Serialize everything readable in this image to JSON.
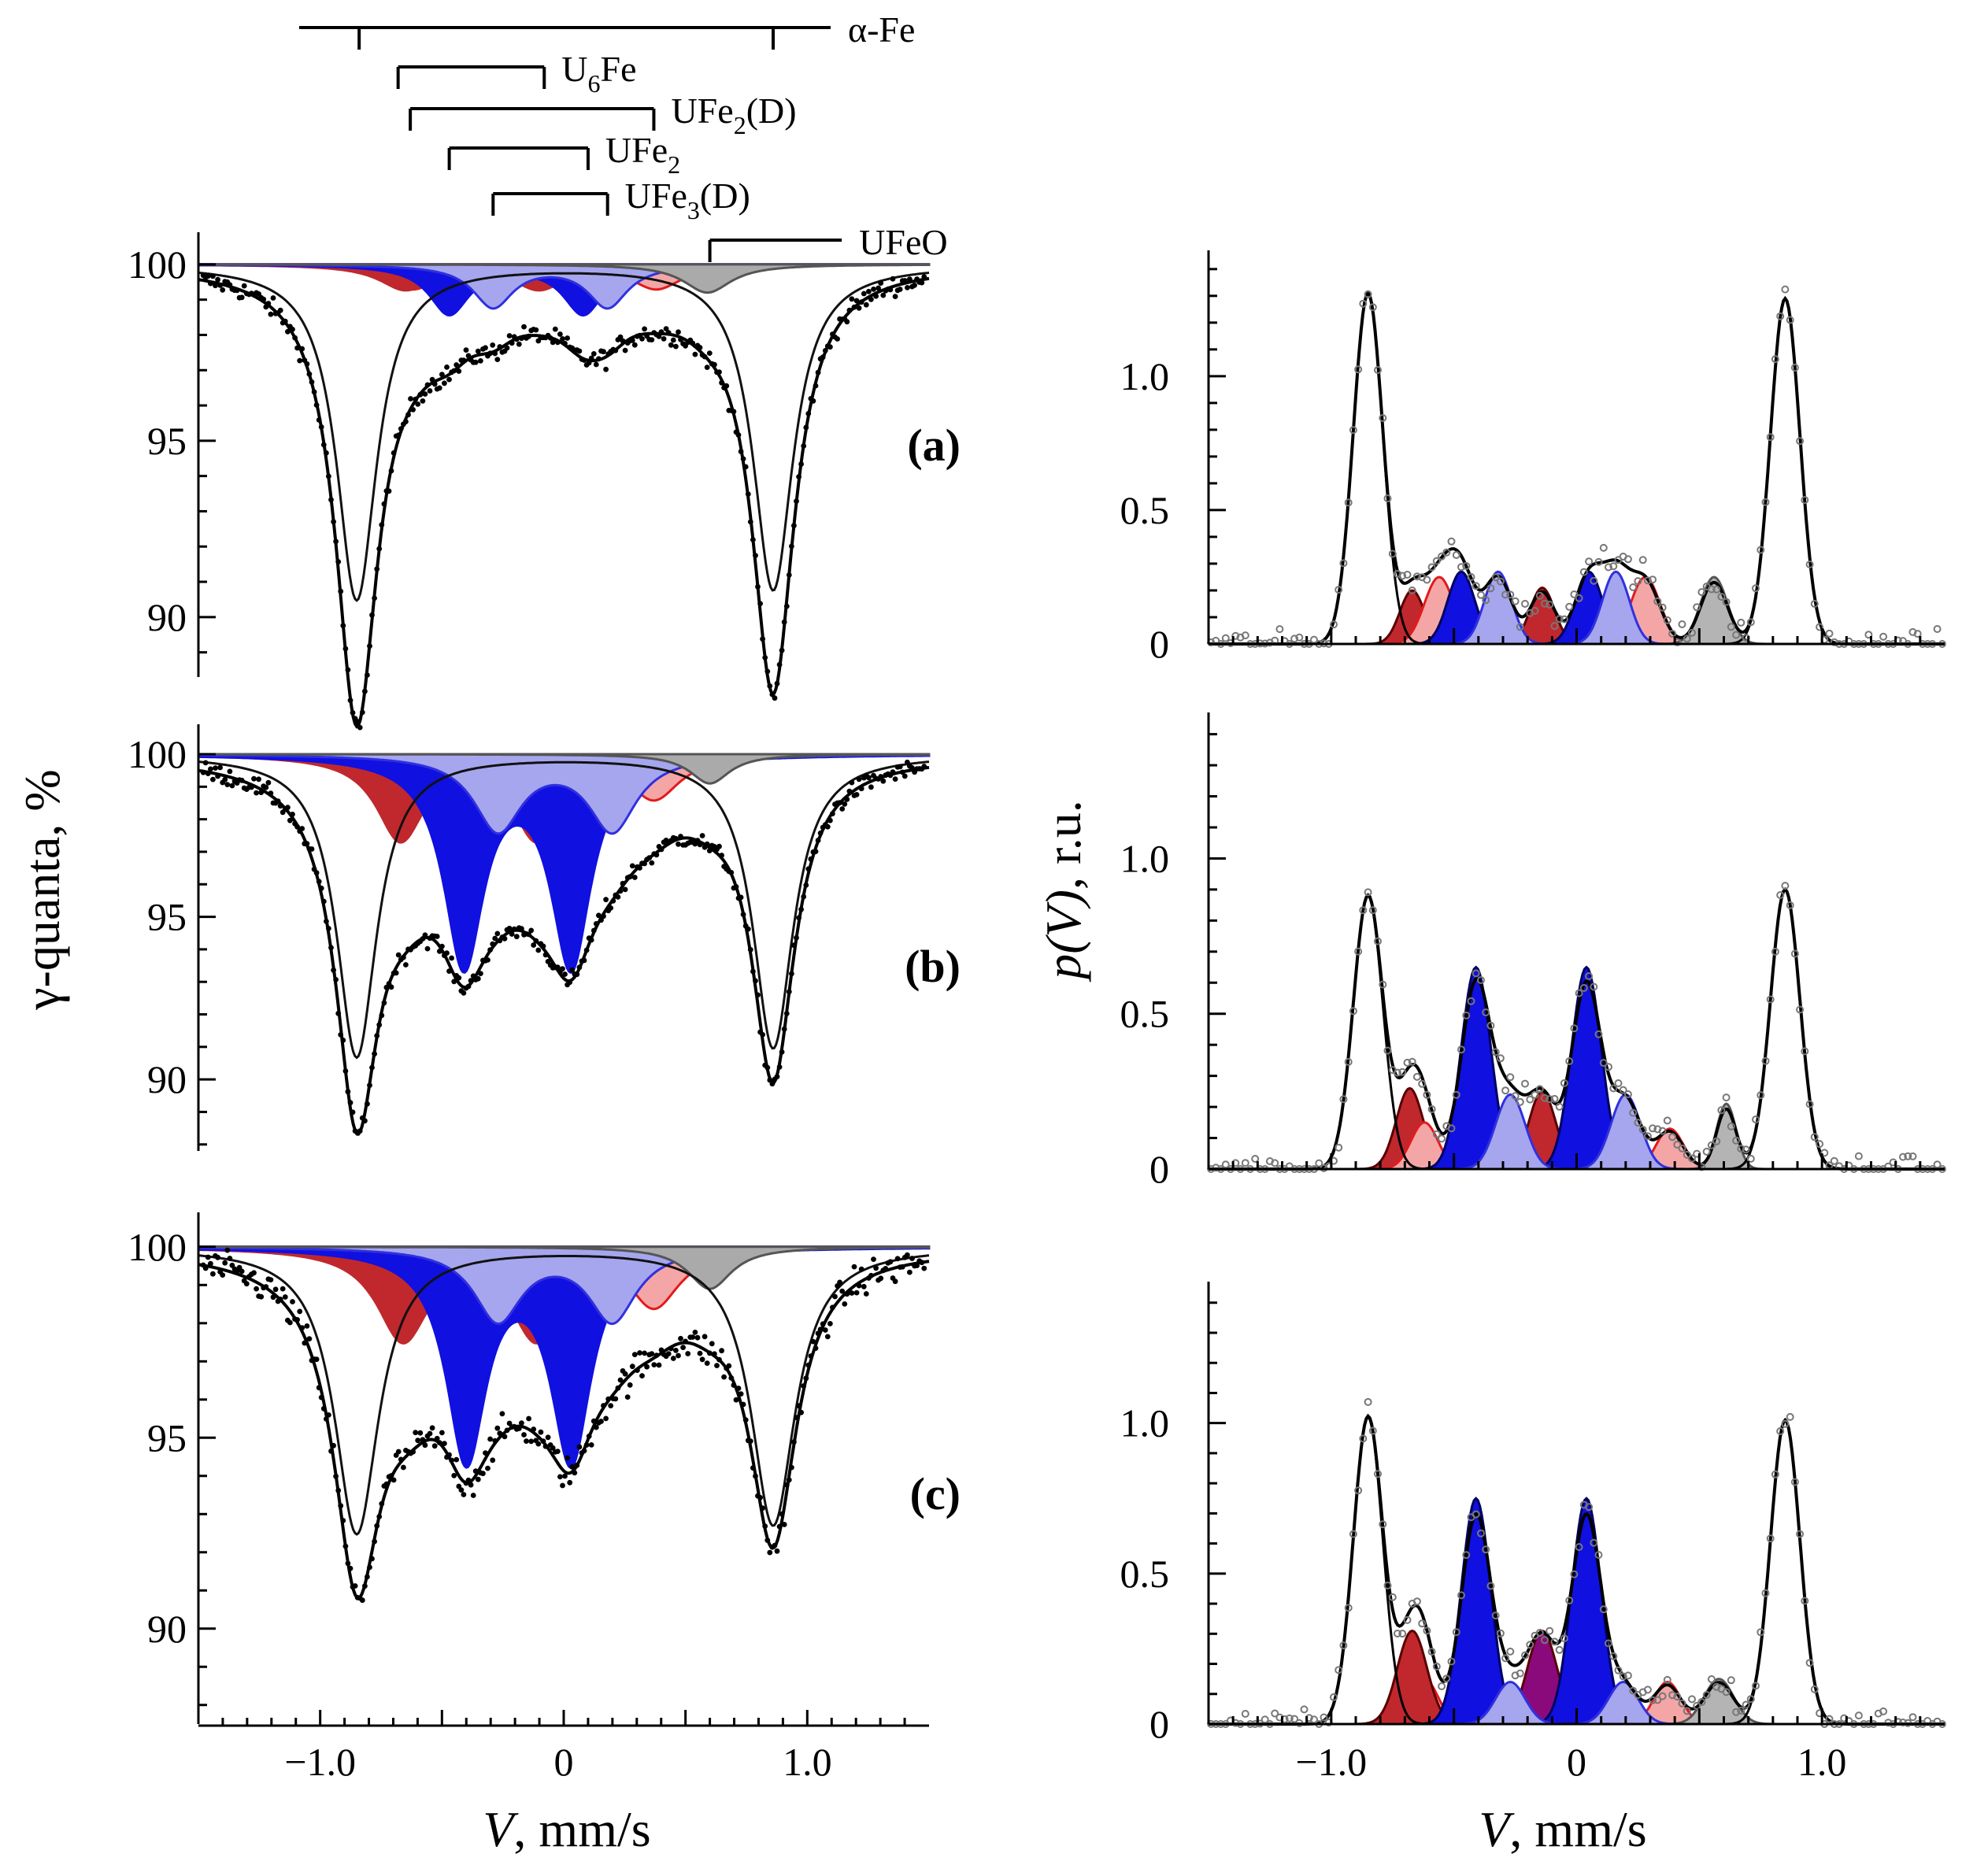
{
  "chart_data": {
    "type": "line",
    "figure": "Mossbauer spectra (left) and hyperfine parameter distributions p(V) (right)",
    "phase_bars": [
      {
        "label": "α-Fe",
        "label_main": "α-Fe",
        "label_sub": "",
        "label_tail": "",
        "v_left": -0.84,
        "v_right": 0.86
      },
      {
        "label": "U6Fe",
        "label_main": "U",
        "label_sub": "6",
        "label_tail": "Fe",
        "v_left": -0.68,
        "v_right": -0.08
      },
      {
        "label": "UFe2(D)",
        "label_main": "UFe",
        "label_sub": "2",
        "label_tail": "(D)",
        "v_left": -0.63,
        "v_right": 0.37
      },
      {
        "label": "UFe2",
        "label_main": "UFe",
        "label_sub": "2",
        "label_tail": "",
        "v_left": -0.47,
        "v_right": 0.1
      },
      {
        "label": "UFe3(D)",
        "label_main": "UFe",
        "label_sub": "3",
        "label_tail": "(D)",
        "v_left": -0.29,
        "v_right": 0.18
      },
      {
        "label": "UFeO",
        "label_main": "UFeO",
        "label_sub": "",
        "label_tail": "",
        "v_left": 0.6,
        "v_right": 0.98
      }
    ],
    "left": {
      "ylabel": "γ-quanta, %",
      "xlabel": "V, mm/s",
      "xlabel_var": "V",
      "xlabel_unit": ", mm/s",
      "xlim": [
        -1.5,
        1.5
      ],
      "xticks": [
        -1.0,
        0,
        1.0
      ],
      "xtick_labels": [
        "−1.0",
        "0",
        "1.0"
      ],
      "panels": [
        {
          "letter": "(a)",
          "ylim": [
            88.3,
            100.8
          ],
          "yticks": [
            100,
            95,
            90
          ],
          "ytick_labels": [
            "100",
            "95",
            "90"
          ],
          "alpha_fe": {
            "depth": 9.5,
            "width": 0.1
          },
          "components": [
            {
              "name": "U6Fe",
              "color": "#c0282d",
              "depth": 0.7,
              "lines": [
                -0.65,
                -0.1
              ],
              "width": 0.13
            },
            {
              "name": "UFe2(D)",
              "color": "#f4a6a6",
              "depth": 0.7,
              "lines": [
                -0.62,
                0.38
              ],
              "width": 0.13
            },
            {
              "name": "UFe2",
              "color": "#1010e0",
              "depth": 1.4,
              "lines": [
                -0.47,
                0.08
              ],
              "width": 0.1
            },
            {
              "name": "UFe3(D)",
              "color": "#a6a6ee",
              "depth": 1.2,
              "lines": [
                -0.29,
                0.18
              ],
              "width": 0.1
            },
            {
              "name": "UFeO",
              "color": "#aaaaaa",
              "depth": 0.8,
              "lines": [
                0.59
              ],
              "width": 0.12
            }
          ],
          "total_scale": 1.27
        },
        {
          "letter": "(b)",
          "ylim": [
            87.8,
            100.8
          ],
          "yticks": [
            100,
            95,
            90
          ],
          "ytick_labels": [
            "100",
            "95",
            "90"
          ],
          "alpha_fe": {
            "depth": 9.3,
            "width": 0.1
          },
          "components": [
            {
              "name": "U6Fe",
              "color": "#c0282d",
              "depth": 2.6,
              "lines": [
                -0.67,
                -0.11
              ],
              "width": 0.12
            },
            {
              "name": "UFe2(D)",
              "color": "#f4a6a6",
              "depth": 1.4,
              "lines": [
                -0.6,
                0.37
              ],
              "width": 0.13
            },
            {
              "name": "UFe2",
              "color": "#1010e0",
              "depth": 6.4,
              "lines": [
                -0.41,
                0.03
              ],
              "width": 0.1
            },
            {
              "name": "UFe3(D)",
              "color": "#a6a6ee",
              "depth": 2.3,
              "lines": [
                -0.27,
                0.2
              ],
              "width": 0.12
            },
            {
              "name": "UFeO",
              "color": "#aaaaaa",
              "depth": 0.9,
              "lines": [
                0.6
              ],
              "width": 0.1
            }
          ],
          "total_scale": 1.05
        },
        {
          "letter": "(c)",
          "ylim": [
            87.5,
            100.8
          ],
          "yticks": [
            100,
            95,
            90
          ],
          "ytick_labels": [
            "100",
            "95",
            "90"
          ],
          "alpha_fe": {
            "depth": 7.5,
            "width": 0.11
          },
          "components": [
            {
              "name": "U6Fe",
              "color": "#c0282d",
              "depth": 2.4,
              "lines": [
                -0.66,
                -0.11
              ],
              "width": 0.13
            },
            {
              "name": "UFe2(D)",
              "color": "#f4a6a6",
              "depth": 1.6,
              "lines": [
                -0.6,
                0.37
              ],
              "width": 0.13
            },
            {
              "name": "UFe2",
              "color": "#1010e0",
              "depth": 5.5,
              "lines": [
                -0.4,
                0.03
              ],
              "width": 0.1
            },
            {
              "name": "UFe3(D)",
              "color": "#a6a6ee",
              "depth": 1.9,
              "lines": [
                -0.27,
                0.2
              ],
              "width": 0.12
            },
            {
              "name": "UFeO",
              "color": "#aaaaaa",
              "depth": 1.1,
              "lines": [
                0.6
              ],
              "width": 0.11
            }
          ],
          "total_scale": 1.0
        }
      ]
    },
    "right": {
      "ylabel": "p(V), r.u.",
      "ylabel_var": "p(V)",
      "ylabel_unit": ", r.u.",
      "xlabel": "V, mm/s",
      "xlabel_var": "V",
      "xlabel_unit": ", mm/s",
      "xlim": [
        -1.5,
        1.5
      ],
      "xticks": [
        -1.0,
        0,
        1.0
      ],
      "xtick_labels": [
        "−1.0",
        "0",
        "1.0"
      ],
      "ylim": [
        0,
        1.47
      ],
      "yticks": [
        0,
        0.5,
        1.0
      ],
      "ytick_labels": [
        "0",
        "0.5",
        "1.0"
      ],
      "panels": [
        {
          "alpha_fe": [
            {
              "center": -0.85,
              "height": 1.31,
              "sigma": 0.06
            },
            {
              "center": 0.85,
              "height": 1.29,
              "sigma": 0.06
            }
          ],
          "peaks": [
            {
              "name": "U6Fe",
              "color": "#c0282d",
              "items": [
                {
                  "center": -0.67,
                  "height": 0.2
                },
                {
                  "center": -0.14,
                  "height": 0.21
                }
              ],
              "sigma": 0.05
            },
            {
              "name": "UFe2(D)",
              "color": "#f4a6a6",
              "items": [
                {
                  "center": -0.56,
                  "height": 0.25
                },
                {
                  "center": 0.28,
                  "height": 0.25
                }
              ],
              "sigma": 0.06
            },
            {
              "name": "UFe2",
              "color": "#1010e0",
              "items": [
                {
                  "center": -0.47,
                  "height": 0.27
                },
                {
                  "center": 0.05,
                  "height": 0.27
                }
              ],
              "sigma": 0.055
            },
            {
              "name": "UFe3(D)",
              "color": "#a6a6ee",
              "items": [
                {
                  "center": -0.32,
                  "height": 0.27
                },
                {
                  "center": 0.16,
                  "height": 0.27
                }
              ],
              "sigma": 0.055
            },
            {
              "name": "UFeO",
              "color": "#b4b4b4",
              "items": [
                {
                  "center": 0.56,
                  "height": 0.25
                }
              ],
              "sigma": 0.055
            }
          ]
        },
        {
          "alpha_fe": [
            {
              "center": -0.85,
              "height": 0.88,
              "sigma": 0.06
            },
            {
              "center": 0.85,
              "height": 0.9,
              "sigma": 0.06
            }
          ],
          "peaks": [
            {
              "name": "U6Fe",
              "color": "#c0282d",
              "items": [
                {
                  "center": -0.68,
                  "height": 0.26
                },
                {
                  "center": -0.14,
                  "height": 0.25
                }
              ],
              "sigma": 0.055
            },
            {
              "name": "UFe2(D)",
              "color": "#f4a6a6",
              "items": [
                {
                  "center": -0.62,
                  "height": 0.15
                },
                {
                  "center": 0.38,
                  "height": 0.13
                }
              ],
              "sigma": 0.055
            },
            {
              "name": "UFe2",
              "color": "#1010e0",
              "items": [
                {
                  "center": -0.41,
                  "height": 0.65
                },
                {
                  "center": 0.04,
                  "height": 0.65
                }
              ],
              "sigma": 0.06
            },
            {
              "name": "UFe3(D)",
              "color": "#a6a6ee",
              "items": [
                {
                  "center": -0.27,
                  "height": 0.24
                },
                {
                  "center": 0.2,
                  "height": 0.24
                }
              ],
              "sigma": 0.06
            },
            {
              "name": "UFeO",
              "color": "#b4b4b4",
              "items": [
                {
                  "center": 0.61,
                  "height": 0.21
                }
              ],
              "sigma": 0.04
            }
          ]
        },
        {
          "alpha_fe": [
            {
              "center": -0.85,
              "height": 1.02,
              "sigma": 0.06
            },
            {
              "center": 0.85,
              "height": 1.01,
              "sigma": 0.06
            }
          ],
          "peaks": [
            {
              "name": "UFe2(D)",
              "color": "#f4a6a6",
              "items": [
                {
                  "center": -0.62,
                  "height": 0.15
                },
                {
                  "center": 0.37,
                  "height": 0.14
                }
              ],
              "sigma": 0.055
            },
            {
              "name": "U6Fe",
              "color": "#c0282d",
              "items": [
                {
                  "center": -0.67,
                  "height": 0.31
                }
              ],
              "sigma": 0.06
            },
            {
              "name": "U6Fe-2",
              "color": "#8b0a7b",
              "items": [
                {
                  "center": -0.14,
                  "height": 0.31
                }
              ],
              "sigma": 0.06
            },
            {
              "name": "UFe2",
              "color": "#1010e0",
              "items": [
                {
                  "center": -0.41,
                  "height": 0.75
                },
                {
                  "center": 0.04,
                  "height": 0.75
                }
              ],
              "sigma": 0.06
            },
            {
              "name": "UFe3(D)",
              "color": "#a6a6ee",
              "items": [
                {
                  "center": -0.27,
                  "height": 0.14
                },
                {
                  "center": 0.19,
                  "height": 0.14
                }
              ],
              "sigma": 0.06
            },
            {
              "name": "UFeO",
              "color": "#b4b4b4",
              "items": [
                {
                  "center": 0.58,
                  "height": 0.15
                }
              ],
              "sigma": 0.06
            }
          ]
        }
      ]
    }
  }
}
